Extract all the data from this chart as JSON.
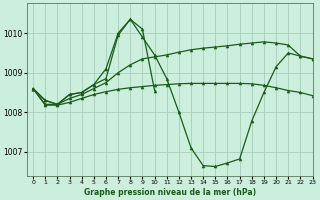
{
  "bg_color": "#cceedd",
  "grid_color": "#aaccbb",
  "line_color": "#1a5c1a",
  "xlabel": "Graphe pression niveau de la mer (hPa)",
  "ylim": [
    1006.4,
    1010.75
  ],
  "yticks": [
    1007,
    1008,
    1009,
    1010
  ],
  "xlim": [
    -0.5,
    23
  ],
  "xticks": [
    0,
    1,
    2,
    3,
    4,
    5,
    6,
    7,
    8,
    9,
    10,
    11,
    12,
    13,
    14,
    15,
    16,
    17,
    18,
    19,
    20,
    21,
    22,
    23
  ],
  "series": [
    [
      1008.6,
      1008.3,
      1008.2,
      1008.45,
      1008.5,
      1008.7,
      1009.1,
      1010.0,
      1010.35,
      1009.9,
      1009.45,
      1008.85,
      1008.0,
      1007.1,
      1006.65,
      1006.63,
      1006.72,
      1006.82,
      1007.78,
      1008.5,
      1009.15,
      1009.5,
      1009.42,
      1009.35
    ],
    [
      1008.6,
      1008.3,
      1008.2,
      1008.45,
      1008.5,
      1008.7,
      1008.85,
      1009.95,
      1010.35,
      1010.1,
      1008.55,
      null,
      null,
      null,
      null,
      null,
      null,
      null,
      null,
      null,
      null,
      null,
      null,
      null
    ],
    [
      1008.6,
      1008.2,
      1008.2,
      1008.35,
      1008.45,
      1008.6,
      1008.75,
      1009.0,
      1009.2,
      1009.35,
      1009.4,
      1009.45,
      1009.52,
      1009.58,
      1009.62,
      1009.65,
      1009.68,
      1009.72,
      1009.75,
      1009.78,
      1009.75,
      1009.7,
      1009.42,
      1009.35
    ],
    [
      1008.6,
      1008.18,
      1008.18,
      1008.25,
      1008.35,
      1008.45,
      1008.52,
      1008.58,
      1008.62,
      1008.65,
      1008.68,
      1008.7,
      1008.72,
      1008.73,
      1008.73,
      1008.73,
      1008.73,
      1008.73,
      1008.72,
      1008.68,
      1008.62,
      1008.55,
      1008.5,
      1008.42
    ]
  ]
}
